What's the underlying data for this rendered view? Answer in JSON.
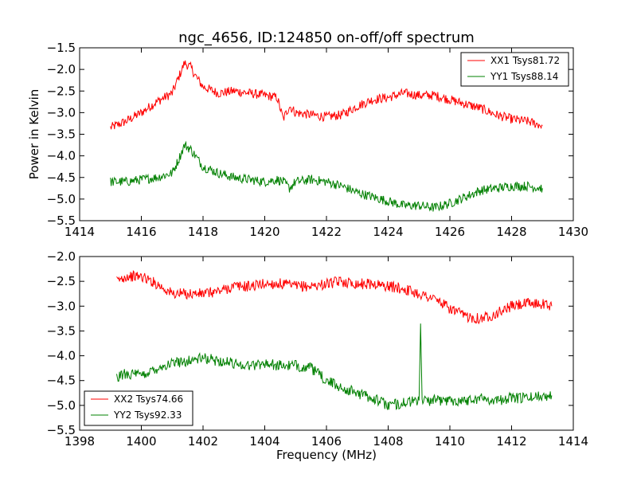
{
  "figure": {
    "title": "ngc_4656, ID:124850 on-off/off spectrum"
  },
  "chart_data": [
    {
      "type": "line",
      "title": "ngc_4656, ID:124850 on-off/off spectrum",
      "xlabel": "",
      "ylabel": "Power in Kelvin",
      "xlim": [
        1414,
        1430
      ],
      "ylim": [
        -5.5,
        -1.5
      ],
      "xticks": [
        1414,
        1416,
        1418,
        1420,
        1422,
        1424,
        1426,
        1428,
        1430
      ],
      "yticks": [
        -1.5,
        -2.0,
        -2.5,
        -3.0,
        -3.5,
        -4.0,
        -4.5,
        -5.0,
        -5.5
      ],
      "xtick_labels": [
        "1414",
        "1416",
        "1418",
        "1420",
        "1422",
        "1424",
        "1426",
        "1428",
        "1430"
      ],
      "ytick_labels": [
        "−1.5",
        "−2.0",
        "−2.5",
        "−3.0",
        "−3.5",
        "−4.0",
        "−4.5",
        "−5.0",
        "−5.5"
      ],
      "grid": false,
      "legend_position": "top-right",
      "series": [
        {
          "name": "XX1 Tsys81.72",
          "color": "#ff0000",
          "x": [
            1415.0,
            1415.5,
            1416.0,
            1416.5,
            1417.0,
            1417.2,
            1417.4,
            1417.6,
            1417.8,
            1418.0,
            1418.5,
            1419.0,
            1419.5,
            1420.0,
            1420.4,
            1420.6,
            1420.8,
            1421.0,
            1421.5,
            1422.0,
            1422.5,
            1423.0,
            1423.5,
            1424.0,
            1424.5,
            1425.0,
            1425.5,
            1426.0,
            1426.5,
            1427.0,
            1427.5,
            1428.0,
            1428.5,
            1429.0
          ],
          "y": [
            -3.35,
            -3.2,
            -3.0,
            -2.75,
            -2.55,
            -2.2,
            -1.85,
            -1.95,
            -2.2,
            -2.4,
            -2.55,
            -2.5,
            -2.55,
            -2.6,
            -2.65,
            -3.15,
            -2.85,
            -3.0,
            -3.05,
            -3.1,
            -3.05,
            -2.85,
            -2.7,
            -2.65,
            -2.55,
            -2.6,
            -2.6,
            -2.7,
            -2.8,
            -2.9,
            -3.05,
            -3.15,
            -3.2,
            -3.3
          ]
        },
        {
          "name": "YY1 Tsys88.14",
          "color": "#008000",
          "x": [
            1415.0,
            1415.5,
            1416.0,
            1416.5,
            1417.0,
            1417.2,
            1417.4,
            1417.6,
            1417.8,
            1418.0,
            1418.5,
            1419.0,
            1419.5,
            1420.0,
            1420.4,
            1420.6,
            1420.8,
            1421.0,
            1421.5,
            1422.0,
            1422.5,
            1423.0,
            1423.5,
            1424.0,
            1424.5,
            1425.0,
            1425.5,
            1426.0,
            1426.5,
            1427.0,
            1427.5,
            1428.0,
            1428.5,
            1429.0
          ],
          "y": [
            -4.6,
            -4.6,
            -4.55,
            -4.5,
            -4.4,
            -4.1,
            -3.75,
            -3.85,
            -4.05,
            -4.25,
            -4.4,
            -4.5,
            -4.55,
            -4.6,
            -4.55,
            -4.6,
            -4.75,
            -4.6,
            -4.55,
            -4.6,
            -4.7,
            -4.85,
            -4.95,
            -5.05,
            -5.15,
            -5.15,
            -5.2,
            -5.1,
            -4.95,
            -4.8,
            -4.75,
            -4.7,
            -4.7,
            -4.75
          ]
        }
      ]
    },
    {
      "type": "line",
      "title": "",
      "xlabel": "Frequency (MHz)",
      "ylabel": "",
      "xlim": [
        1398,
        1414
      ],
      "ylim": [
        -5.5,
        -2.0
      ],
      "xticks": [
        1398,
        1400,
        1402,
        1404,
        1406,
        1408,
        1410,
        1412,
        1414
      ],
      "yticks": [
        -2.0,
        -2.5,
        -3.0,
        -3.5,
        -4.0,
        -4.5,
        -5.0,
        -5.5
      ],
      "xtick_labels": [
        "1398",
        "1400",
        "1402",
        "1404",
        "1406",
        "1408",
        "1410",
        "1412",
        "1414"
      ],
      "ytick_labels": [
        "−2.0",
        "−2.5",
        "−3.0",
        "−3.5",
        "−4.0",
        "−4.5",
        "−5.0",
        "−5.5"
      ],
      "grid": false,
      "legend_position": "bottom-left",
      "series": [
        {
          "name": "XX2 Tsys74.66",
          "color": "#ff0000",
          "x": [
            1399.2,
            1399.5,
            1400.0,
            1400.5,
            1401.0,
            1401.5,
            1402.0,
            1402.5,
            1403.0,
            1403.5,
            1404.0,
            1404.5,
            1405.0,
            1405.5,
            1406.0,
            1406.5,
            1407.0,
            1407.5,
            1408.0,
            1408.5,
            1409.0,
            1409.5,
            1410.0,
            1410.5,
            1411.0,
            1411.5,
            1412.0,
            1412.5,
            1413.0,
            1413.3
          ],
          "y": [
            -2.5,
            -2.4,
            -2.4,
            -2.55,
            -2.75,
            -2.75,
            -2.75,
            -2.7,
            -2.6,
            -2.6,
            -2.55,
            -2.55,
            -2.6,
            -2.6,
            -2.55,
            -2.5,
            -2.55,
            -2.55,
            -2.6,
            -2.65,
            -2.75,
            -2.85,
            -3.05,
            -3.2,
            -3.25,
            -3.15,
            -3.0,
            -2.95,
            -2.95,
            -3.0
          ]
        },
        {
          "name": "YY2 Tsys92.33",
          "color": "#008000",
          "x": [
            1399.2,
            1399.5,
            1400.0,
            1400.5,
            1401.0,
            1401.5,
            1402.0,
            1402.5,
            1403.0,
            1403.5,
            1404.0,
            1404.5,
            1405.0,
            1405.5,
            1406.0,
            1406.5,
            1407.0,
            1407.5,
            1408.0,
            1408.5,
            1409.0,
            1409.05,
            1409.1,
            1409.5,
            1410.0,
            1410.5,
            1411.0,
            1411.5,
            1412.0,
            1412.5,
            1413.0,
            1413.3
          ],
          "y": [
            -4.45,
            -4.35,
            -4.4,
            -4.25,
            -4.15,
            -4.1,
            -4.05,
            -4.1,
            -4.15,
            -4.2,
            -4.15,
            -4.2,
            -4.2,
            -4.25,
            -4.5,
            -4.65,
            -4.75,
            -4.85,
            -5.0,
            -4.95,
            -4.9,
            -3.35,
            -4.9,
            -4.9,
            -4.9,
            -4.9,
            -4.85,
            -4.9,
            -4.85,
            -4.85,
            -4.8,
            -4.8
          ]
        }
      ]
    }
  ]
}
